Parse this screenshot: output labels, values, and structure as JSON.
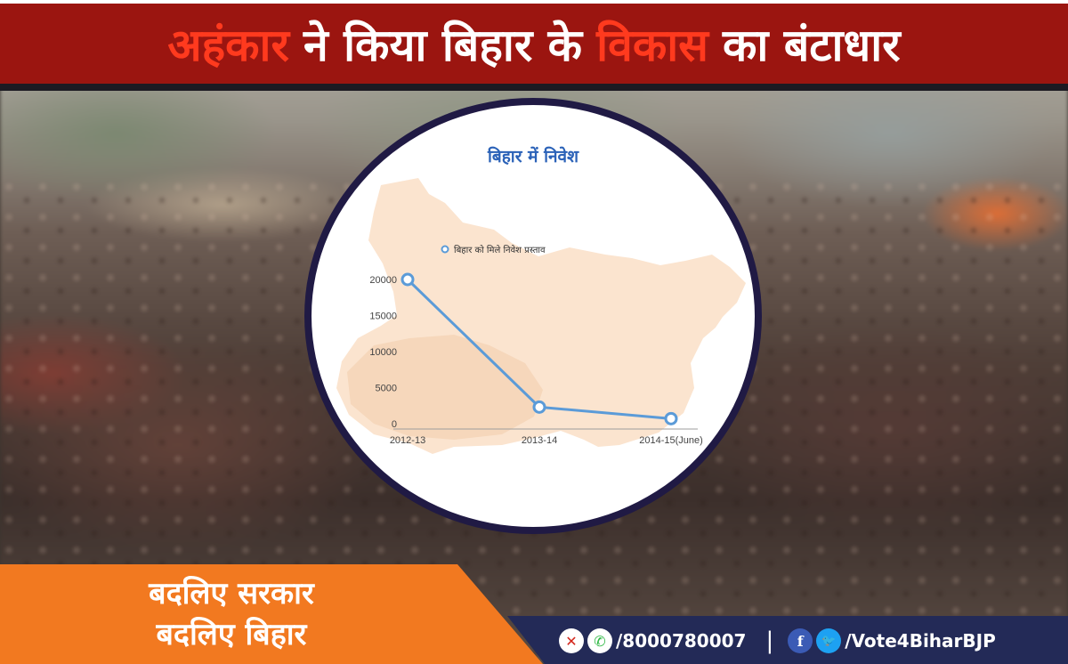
{
  "header": {
    "word1": "अहंकार",
    "word2": "ने किया बिहार के",
    "word3": "विकास",
    "word4": "का बंटाधार"
  },
  "chart_data": {
    "type": "line",
    "title": "बिहार में निवेश",
    "categories": [
      "2012-13",
      "2013-14",
      "2014-15(June)"
    ],
    "series": [
      {
        "name": "बिहार को मिले निवेश प्रस्ताव",
        "values": [
          20000,
          2300,
          700
        ]
      }
    ],
    "yticks": [
      "0",
      "5000",
      "10000",
      "15000",
      "20000"
    ],
    "ylim": [
      0,
      20000
    ],
    "legend_position": "top-left",
    "grid": false,
    "line_color": "#5b9bd8",
    "background_shape_color": "#fbe4cf"
  },
  "footer": {
    "slogan_line1": "बदलिए सरकार",
    "slogan_line2": "बदलिए बिहार",
    "phone": "/8000780007",
    "handle": "/Vote4BiharBJP",
    "separator": "|",
    "icons": [
      "no-call-icon",
      "whatsapp-icon",
      "facebook-icon",
      "twitter-icon"
    ]
  }
}
